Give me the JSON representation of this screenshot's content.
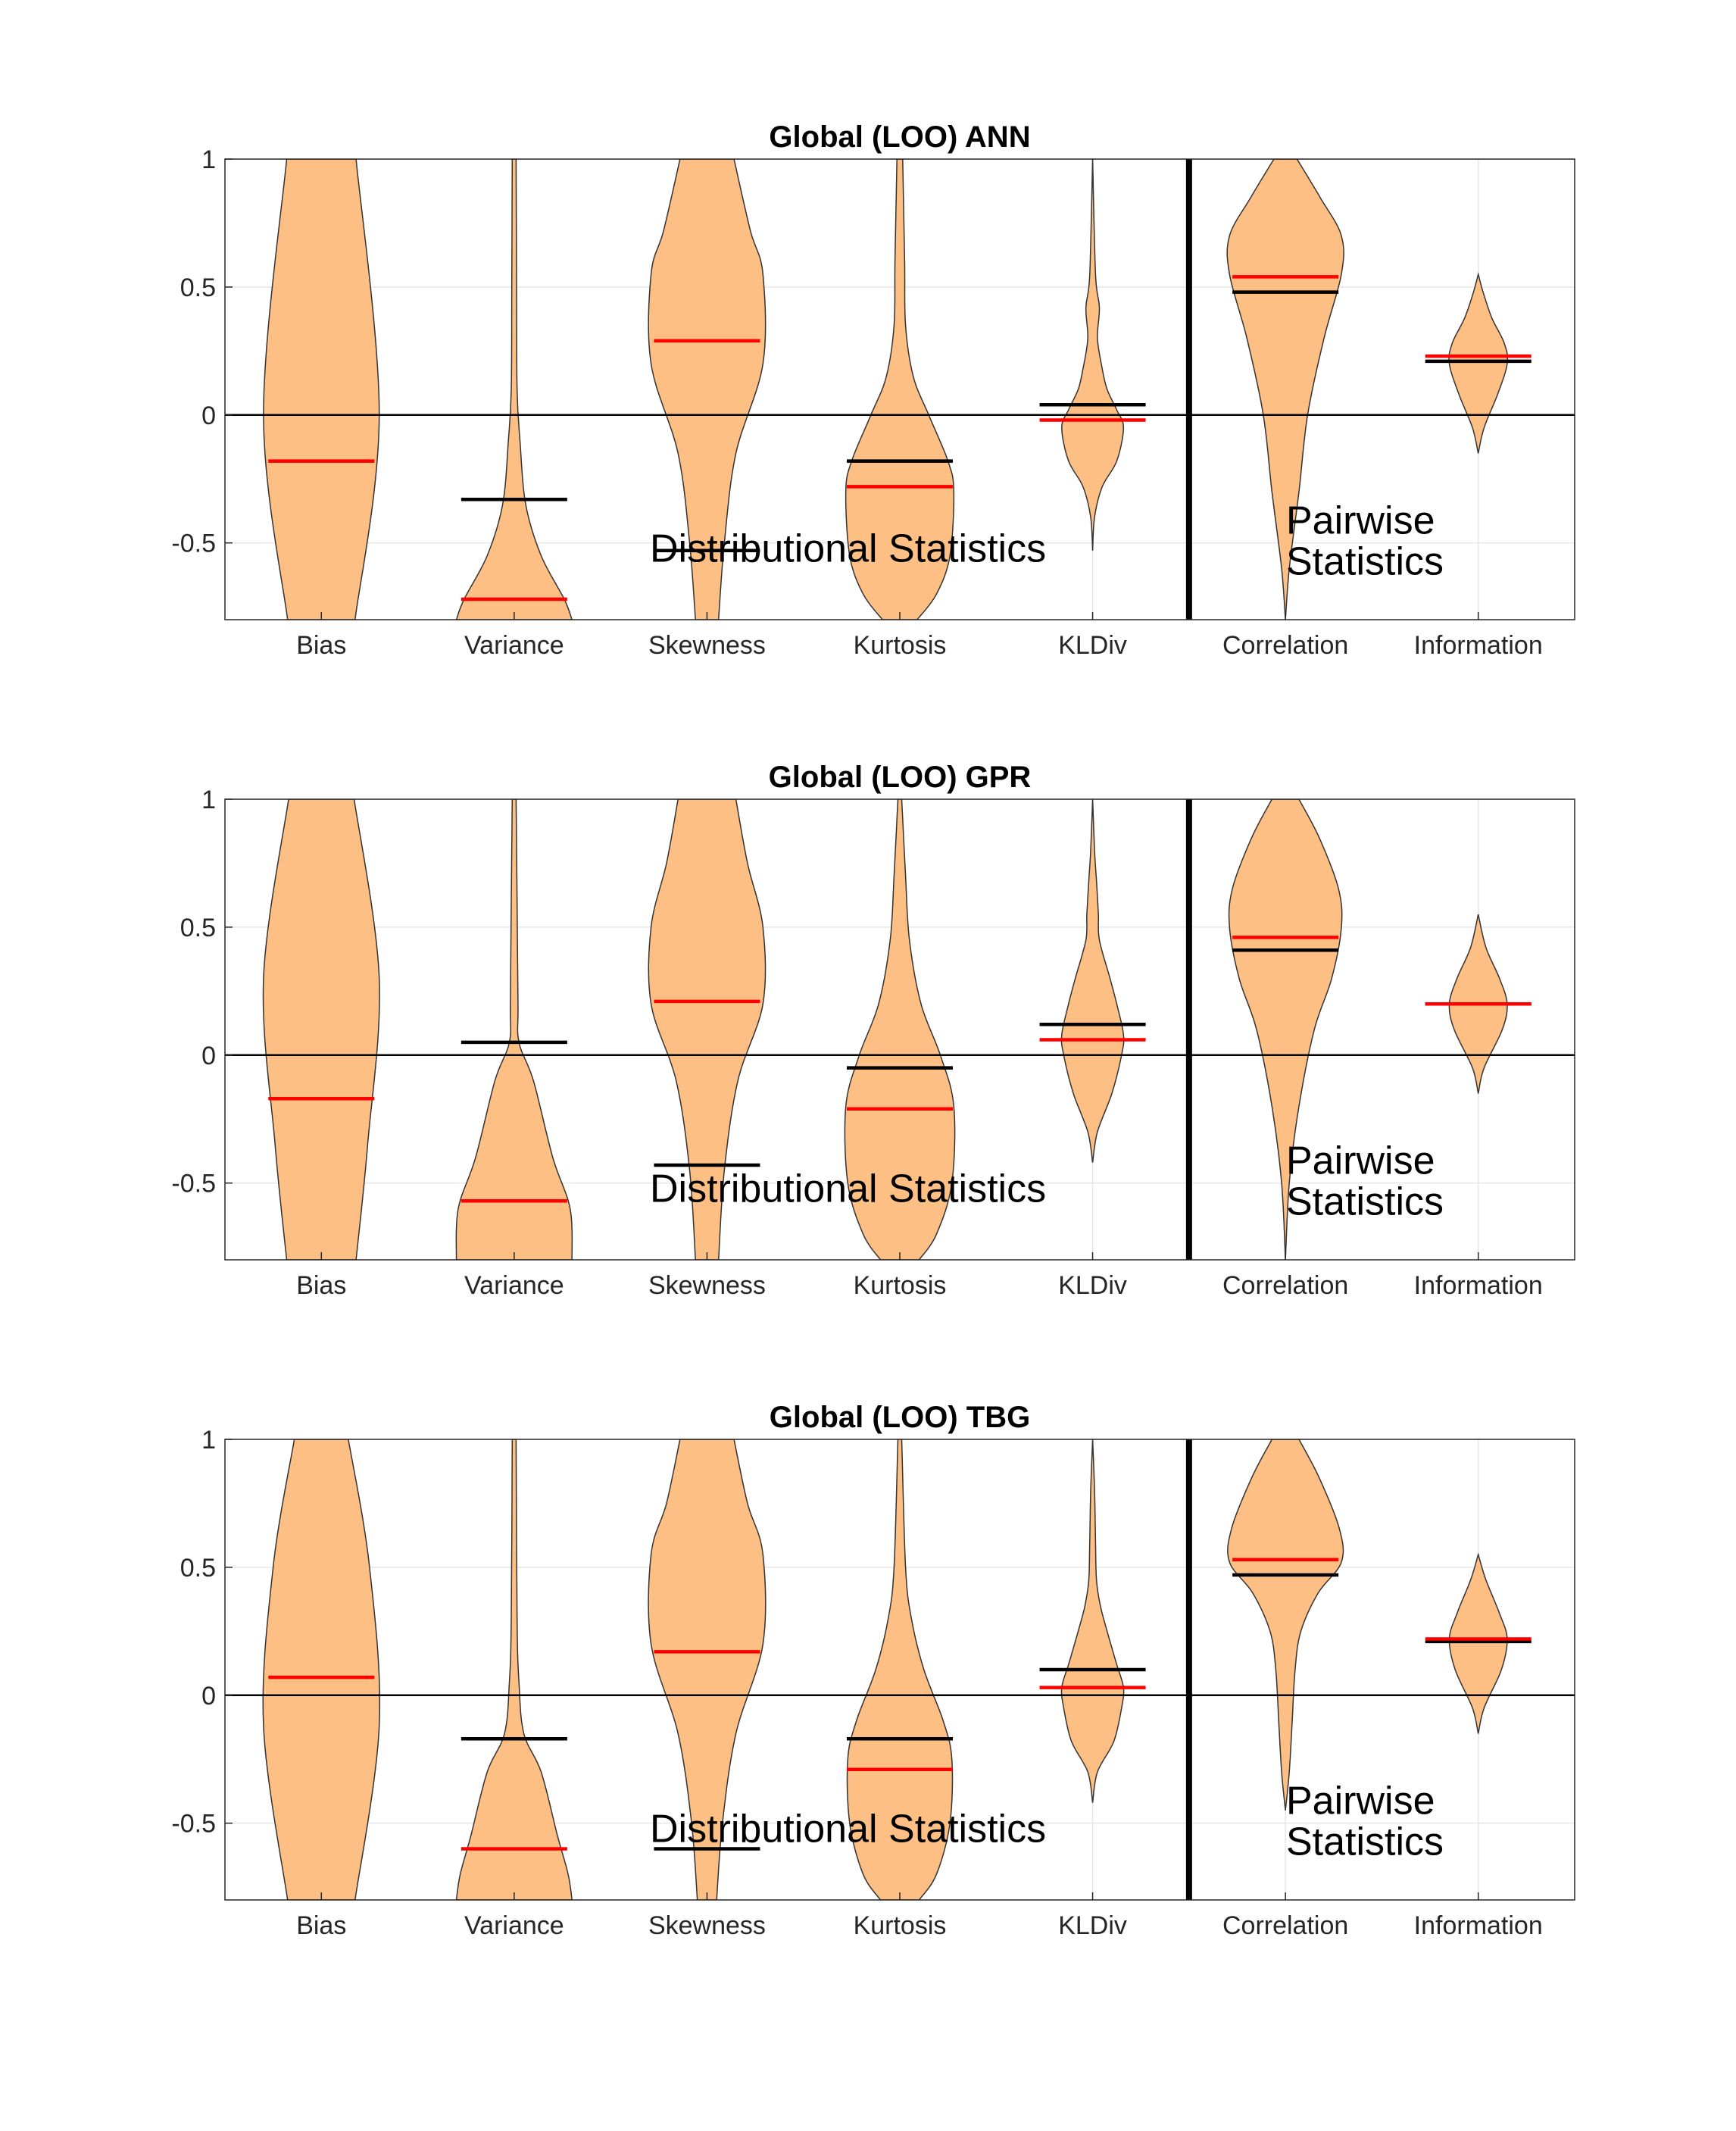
{
  "chart_data": [
    {
      "type": "violin",
      "title": "Global (LOO) ANN",
      "categories": [
        "Bias",
        "Variance",
        "Skewness",
        "Kurtosis",
        "KLDiv",
        "Correlation",
        "Information"
      ],
      "ylim": [
        -0.8,
        1
      ],
      "yticks": [
        -0.5,
        0,
        0.5,
        1
      ],
      "ytick_labels": [
        "-0.5",
        "0",
        "0.5",
        "1"
      ],
      "grid": true,
      "red_lines": [
        -0.18,
        -0.72,
        0.29,
        -0.28,
        -0.02,
        0.54,
        0.23
      ],
      "black_lines": [
        null,
        -0.33,
        -0.53,
        -0.18,
        0.04,
        0.48,
        0.21
      ],
      "violins": [
        {
          "profile": [
            [
              -0.8,
              0.35
            ],
            [
              0.0,
              0.6
            ],
            [
              1.0,
              0.36
            ]
          ]
        },
        {
          "profile": [
            [
              -0.8,
              0.6
            ],
            [
              -0.72,
              0.52
            ],
            [
              -0.55,
              0.28
            ],
            [
              -0.35,
              0.12
            ],
            [
              -0.1,
              0.06
            ],
            [
              0.1,
              0.03
            ],
            [
              0.5,
              0.025
            ],
            [
              1.0,
              0.02
            ]
          ]
        },
        {
          "profile": [
            [
              -0.8,
              0.12
            ],
            [
              -0.5,
              0.18
            ],
            [
              -0.15,
              0.3
            ],
            [
              0.2,
              0.58
            ],
            [
              0.55,
              0.58
            ],
            [
              0.72,
              0.45
            ],
            [
              1.0,
              0.28
            ]
          ]
        },
        {
          "profile": [
            [
              -0.8,
              0.18
            ],
            [
              -0.7,
              0.38
            ],
            [
              -0.55,
              0.52
            ],
            [
              -0.3,
              0.56
            ],
            [
              -0.18,
              0.5
            ],
            [
              0.0,
              0.3
            ],
            [
              0.15,
              0.14
            ],
            [
              0.35,
              0.06
            ],
            [
              0.6,
              0.05
            ],
            [
              1.0,
              0.03
            ]
          ]
        },
        {
          "profile": [
            [
              -0.53,
              0.0
            ],
            [
              -0.4,
              0.02
            ],
            [
              -0.28,
              0.1
            ],
            [
              -0.18,
              0.25
            ],
            [
              -0.05,
              0.32
            ],
            [
              0.02,
              0.25
            ],
            [
              0.1,
              0.15
            ],
            [
              0.18,
              0.1
            ],
            [
              0.3,
              0.05
            ],
            [
              0.42,
              0.07
            ],
            [
              0.55,
              0.03
            ],
            [
              1.0,
              0.0
            ]
          ]
        },
        {
          "profile": [
            [
              -0.8,
              0.0
            ],
            [
              -0.6,
              0.04
            ],
            [
              -0.3,
              0.14
            ],
            [
              0.0,
              0.23
            ],
            [
              0.3,
              0.4
            ],
            [
              0.55,
              0.58
            ],
            [
              0.7,
              0.58
            ],
            [
              0.85,
              0.36
            ],
            [
              1.0,
              0.12
            ]
          ]
        },
        {
          "profile": [
            [
              -0.15,
              0.0
            ],
            [
              -0.05,
              0.06
            ],
            [
              0.08,
              0.2
            ],
            [
              0.2,
              0.3
            ],
            [
              0.28,
              0.27
            ],
            [
              0.38,
              0.14
            ],
            [
              0.48,
              0.05
            ],
            [
              0.55,
              0.0
            ]
          ]
        }
      ],
      "annotations": [
        "Distributional Statistics",
        "Pairwise",
        "Statistics"
      ]
    },
    {
      "type": "violin",
      "title": "Global (LOO) GPR",
      "categories": [
        "Bias",
        "Variance",
        "Skewness",
        "Kurtosis",
        "KLDiv",
        "Correlation",
        "Information"
      ],
      "ylim": [
        -0.8,
        1
      ],
      "yticks": [
        -0.5,
        0,
        0.5,
        1
      ],
      "ytick_labels": [
        "-0.5",
        "0",
        "0.5",
        "1"
      ],
      "grid": true,
      "red_lines": [
        -0.17,
        -0.57,
        0.21,
        -0.21,
        0.06,
        0.46,
        0.2
      ],
      "black_lines": [
        null,
        0.05,
        -0.43,
        -0.05,
        0.12,
        0.41,
        0.2
      ],
      "violins": [
        {
          "profile": [
            [
              -0.8,
              0.36
            ],
            [
              -0.35,
              0.48
            ],
            [
              0.3,
              0.6
            ],
            [
              1.0,
              0.34
            ]
          ]
        },
        {
          "profile": [
            [
              -0.8,
              0.6
            ],
            [
              -0.6,
              0.58
            ],
            [
              -0.4,
              0.4
            ],
            [
              -0.1,
              0.2
            ],
            [
              0.05,
              0.05
            ],
            [
              0.2,
              0.04
            ],
            [
              0.6,
              0.03
            ],
            [
              1.0,
              0.02
            ]
          ]
        },
        {
          "profile": [
            [
              -0.8,
              0.12
            ],
            [
              -0.45,
              0.18
            ],
            [
              -0.1,
              0.32
            ],
            [
              0.2,
              0.58
            ],
            [
              0.5,
              0.58
            ],
            [
              0.75,
              0.42
            ],
            [
              1.0,
              0.3
            ]
          ]
        },
        {
          "profile": [
            [
              -0.8,
              0.2
            ],
            [
              -0.7,
              0.38
            ],
            [
              -0.5,
              0.54
            ],
            [
              -0.2,
              0.56
            ],
            [
              0.0,
              0.42
            ],
            [
              0.2,
              0.22
            ],
            [
              0.45,
              0.1
            ],
            [
              0.7,
              0.06
            ],
            [
              1.0,
              0.02
            ]
          ]
        },
        {
          "profile": [
            [
              -0.42,
              0.0
            ],
            [
              -0.3,
              0.05
            ],
            [
              -0.15,
              0.2
            ],
            [
              0.0,
              0.3
            ],
            [
              0.08,
              0.32
            ],
            [
              0.2,
              0.25
            ],
            [
              0.3,
              0.18
            ],
            [
              0.45,
              0.07
            ],
            [
              0.55,
              0.06
            ],
            [
              0.68,
              0.04
            ],
            [
              0.8,
              0.02
            ],
            [
              1.0,
              0.0
            ]
          ]
        },
        {
          "profile": [
            [
              -0.8,
              0.0
            ],
            [
              -0.5,
              0.04
            ],
            [
              -0.2,
              0.14
            ],
            [
              0.1,
              0.3
            ],
            [
              0.3,
              0.48
            ],
            [
              0.5,
              0.58
            ],
            [
              0.65,
              0.55
            ],
            [
              0.85,
              0.35
            ],
            [
              1.0,
              0.14
            ]
          ]
        },
        {
          "profile": [
            [
              -0.15,
              0.0
            ],
            [
              -0.05,
              0.06
            ],
            [
              0.1,
              0.25
            ],
            [
              0.2,
              0.3
            ],
            [
              0.3,
              0.22
            ],
            [
              0.42,
              0.08
            ],
            [
              0.55,
              0.0
            ]
          ]
        }
      ],
      "annotations": [
        "Distributional Statistics",
        "Pairwise",
        "Statistics"
      ]
    },
    {
      "type": "violin",
      "title": "Global (LOO) TBG",
      "categories": [
        "Bias",
        "Variance",
        "Skewness",
        "Kurtosis",
        "KLDiv",
        "Correlation",
        "Information"
      ],
      "ylim": [
        -0.8,
        1
      ],
      "yticks": [
        -0.5,
        0,
        0.5,
        1
      ],
      "ytick_labels": [
        "-0.5",
        "0",
        "0.5",
        "1"
      ],
      "grid": true,
      "red_lines": [
        0.07,
        -0.6,
        0.17,
        -0.29,
        0.03,
        0.53,
        0.22
      ],
      "black_lines": [
        null,
        -0.17,
        -0.6,
        -0.17,
        0.1,
        0.47,
        0.21
      ],
      "violins": [
        {
          "profile": [
            [
              -0.8,
              0.35
            ],
            [
              -0.12,
              0.6
            ],
            [
              0.5,
              0.5
            ],
            [
              1.0,
              0.28
            ]
          ]
        },
        {
          "profile": [
            [
              -0.8,
              0.6
            ],
            [
              -0.7,
              0.56
            ],
            [
              -0.55,
              0.45
            ],
            [
              -0.3,
              0.28
            ],
            [
              -0.15,
              0.1
            ],
            [
              0.05,
              0.05
            ],
            [
              0.3,
              0.03
            ],
            [
              1.0,
              0.02
            ]
          ]
        },
        {
          "profile": [
            [
              -0.8,
              0.1
            ],
            [
              -0.5,
              0.16
            ],
            [
              -0.15,
              0.3
            ],
            [
              0.2,
              0.58
            ],
            [
              0.55,
              0.58
            ],
            [
              0.75,
              0.42
            ],
            [
              1.0,
              0.28
            ]
          ]
        },
        {
          "profile": [
            [
              -0.8,
              0.2
            ],
            [
              -0.7,
              0.38
            ],
            [
              -0.5,
              0.52
            ],
            [
              -0.25,
              0.54
            ],
            [
              -0.1,
              0.45
            ],
            [
              0.1,
              0.25
            ],
            [
              0.3,
              0.12
            ],
            [
              0.5,
              0.06
            ],
            [
              1.0,
              0.02
            ]
          ]
        },
        {
          "profile": [
            [
              -0.42,
              0.0
            ],
            [
              -0.3,
              0.05
            ],
            [
              -0.18,
              0.22
            ],
            [
              -0.05,
              0.3
            ],
            [
              0.03,
              0.32
            ],
            [
              0.12,
              0.25
            ],
            [
              0.25,
              0.15
            ],
            [
              0.35,
              0.08
            ],
            [
              0.45,
              0.04
            ],
            [
              0.6,
              0.03
            ],
            [
              0.8,
              0.02
            ],
            [
              1.0,
              0.0
            ]
          ]
        },
        {
          "profile": [
            [
              -0.45,
              0.0
            ],
            [
              -0.3,
              0.04
            ],
            [
              -0.1,
              0.07
            ],
            [
              0.1,
              0.1
            ],
            [
              0.25,
              0.16
            ],
            [
              0.4,
              0.34
            ],
            [
              0.52,
              0.58
            ],
            [
              0.65,
              0.56
            ],
            [
              0.85,
              0.35
            ],
            [
              1.0,
              0.14
            ]
          ]
        },
        {
          "profile": [
            [
              -0.15,
              0.0
            ],
            [
              -0.05,
              0.06
            ],
            [
              0.1,
              0.24
            ],
            [
              0.22,
              0.3
            ],
            [
              0.32,
              0.22
            ],
            [
              0.45,
              0.08
            ],
            [
              0.55,
              0.0
            ]
          ]
        }
      ],
      "annotations": [
        "Distributional Statistics",
        "Pairwise",
        "Statistics"
      ]
    }
  ]
}
